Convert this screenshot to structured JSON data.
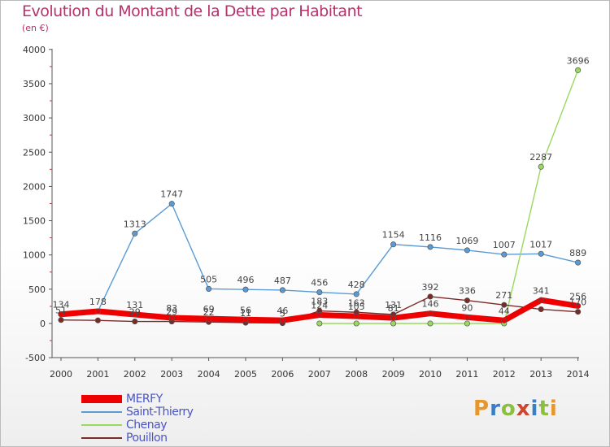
{
  "header": {
    "title": "Evolution du Montant de la Dette par Habitant",
    "subtitle": "(en €)"
  },
  "logo": {
    "letters": [
      "P",
      "r",
      "o",
      "x",
      "i",
      "t",
      "i"
    ],
    "colors": [
      "#e8952a",
      "#3a7fc4",
      "#8dbf3f",
      "#d0452e",
      "#3a7fc4",
      "#8dbf3f",
      "#e8952a"
    ]
  },
  "chart_data": {
    "type": "line",
    "title": "Evolution du Montant de la Dette par Habitant",
    "ylabel": "(en €)",
    "xlabel": "",
    "x": [
      "2000",
      "2001",
      "2002",
      "2003",
      "2004",
      "2005",
      "2006",
      "2007",
      "2008",
      "2009",
      "2010",
      "2011",
      "2012",
      "2013",
      "2014"
    ],
    "ylim": [
      -500,
      4000
    ],
    "yticks": [
      -500,
      0,
      500,
      1000,
      1500,
      2000,
      2500,
      3000,
      3500,
      4000
    ],
    "grid": false,
    "legend_position": "bottom-left",
    "series": [
      {
        "name": "MERFY",
        "color": "#ee0000",
        "values": [
          134,
          178,
          131,
          83,
          69,
          56,
          46,
          124,
          105,
          81,
          146,
          90,
          44,
          341,
          256
        ],
        "labels": [
          "134",
          "178",
          "131",
          "83",
          "69",
          "56",
          "46",
          "124",
          "105",
          "81",
          "146",
          "90",
          "44",
          "341",
          "256"
        ]
      },
      {
        "name": "Saint-Thierry",
        "color": "#5b9bd5",
        "values": [
          134,
          178,
          1313,
          1747,
          505,
          496,
          487,
          456,
          428,
          1154,
          1116,
          1069,
          1007,
          1017,
          889
        ],
        "labels": [
          "",
          "",
          "1313",
          "1747",
          "505",
          "496",
          "487",
          "456",
          "428",
          "1154",
          "1116",
          "1069",
          "1007",
          "1017",
          "889"
        ]
      },
      {
        "name": "Chenay",
        "color": "#99d95f",
        "values": [
          null,
          null,
          null,
          null,
          null,
          null,
          null,
          0,
          0,
          0,
          0,
          0,
          0,
          2287,
          3696
        ],
        "labels": [
          "",
          "",
          "",
          "",
          "",
          "",
          "",
          "",
          "",
          "",
          "",
          "",
          "",
          "2287",
          "3696"
        ]
      },
      {
        "name": "Pouillon",
        "color": "#7b2a2a",
        "values": [
          51,
          45,
          29,
          29,
          22,
          11,
          5,
          183,
          163,
          131,
          392,
          336,
          271,
          207,
          170
        ],
        "labels": [
          "51",
          "",
          "29",
          "29",
          "22",
          "11",
          "5",
          "183",
          "163",
          "131",
          "392",
          "336",
          "271",
          "",
          "170"
        ]
      }
    ]
  }
}
